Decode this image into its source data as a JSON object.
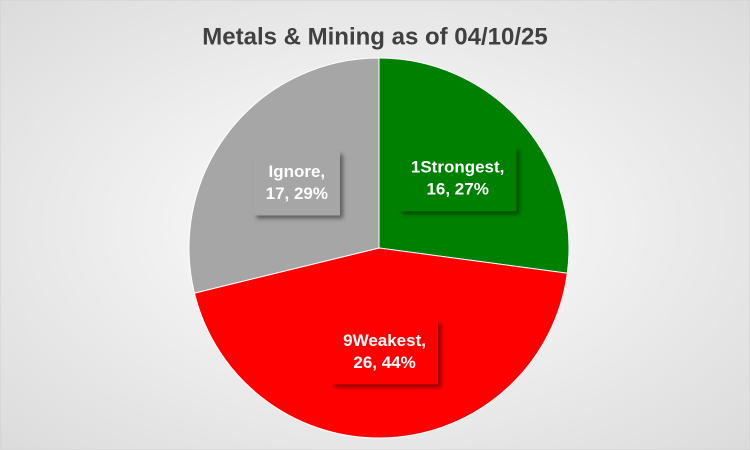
{
  "chart_data": {
    "type": "pie",
    "title": "Metals & Mining as of 04/10/25",
    "values": [
      16,
      26,
      17
    ],
    "value_labels": [
      [
        "1Strongest,",
        "16, 27%"
      ],
      [
        "9Weakest,",
        "26, 44%"
      ],
      [
        "Ignore,",
        "17, 29%"
      ]
    ],
    "colors": [
      "#008000",
      "#ff0000",
      "#a6a6a6"
    ]
  }
}
